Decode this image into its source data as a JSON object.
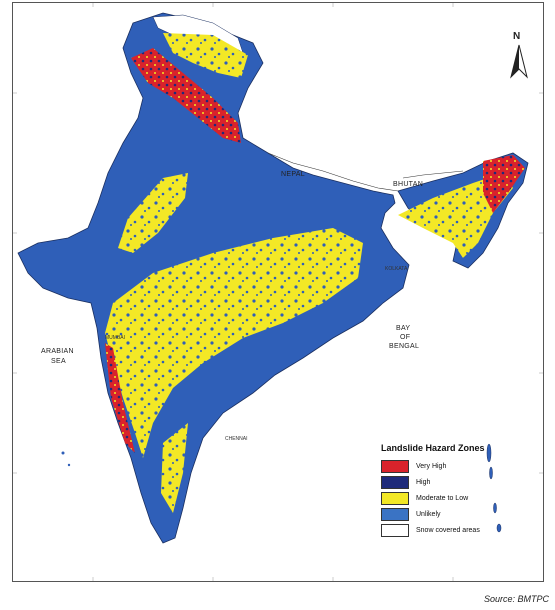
{
  "map": {
    "regions": {
      "nepal": "NEPAL",
      "bhutan": "BHUTAN",
      "arabian_sea_1": "ARABIAN",
      "arabian_sea_2": "SEA",
      "bay_1": "BAY",
      "bay_2": "OF",
      "bay_3": "BENGAL"
    },
    "cities": {
      "kolkata": "KOLKATA",
      "mumbai": "MUMBAI",
      "chennai": "CHENNAI"
    },
    "north_label": "N"
  },
  "legend": {
    "title": "Landslide Hazard Zones",
    "items": [
      {
        "label": "Very High",
        "color": "#d9232b"
      },
      {
        "label": "High",
        "color": "#1e2a7a"
      },
      {
        "label": "Moderate to Low",
        "color": "#f3e826"
      },
      {
        "label": "Unlikely",
        "color": "#3a73c4"
      },
      {
        "label": "Snow covered areas",
        "color": "#ffffff"
      }
    ]
  },
  "colors": {
    "land_base": "#2f5fb8",
    "moderate": "#f3e826",
    "very_high": "#d9232b",
    "high": "#1e2a7a",
    "snow": "#ffffff"
  },
  "source": "Source: BMTPC"
}
